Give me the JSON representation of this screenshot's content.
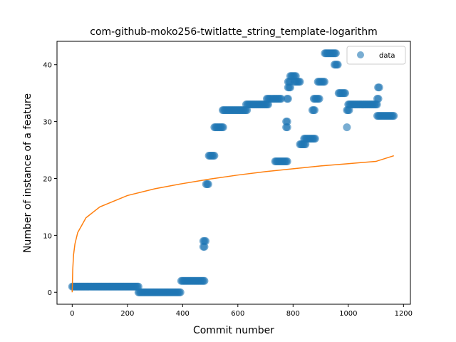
{
  "chart_data": {
    "type": "scatter",
    "title": "com-github-moko256-twitlatte_string_template-logarithm",
    "xlabel": "Commit number",
    "ylabel": "Number of instance of a feature",
    "xlim": [
      -55,
      1225
    ],
    "ylim": [
      -2.1,
      44.1
    ],
    "xticks": [
      0,
      200,
      400,
      600,
      800,
      1000,
      1200
    ],
    "yticks": [
      0,
      10,
      20,
      30,
      40
    ],
    "grid": false,
    "legend": {
      "position": "top-right",
      "entries": [
        "data"
      ]
    },
    "colors": {
      "scatter": "#1f77b4",
      "fit": "#ff7f0e"
    },
    "series": [
      {
        "name": "data",
        "kind": "scatter",
        "segments": [
          {
            "x_start": 0,
            "x_end": 240,
            "y": 1
          },
          {
            "x_start": 240,
            "x_end": 395,
            "y": 0
          },
          {
            "x_start": 395,
            "x_end": 480,
            "y": 2
          },
          {
            "x_start": 475,
            "x_end": 485,
            "y": 9
          },
          {
            "x_start": 475,
            "x_end": 480,
            "y": 8
          },
          {
            "x_start": 485,
            "x_end": 495,
            "y": 19
          },
          {
            "x_start": 495,
            "x_end": 515,
            "y": 24
          },
          {
            "x_start": 515,
            "x_end": 550,
            "y": 29
          },
          {
            "x_start": 545,
            "x_end": 635,
            "y": 32
          },
          {
            "x_start": 630,
            "x_end": 710,
            "y": 33
          },
          {
            "x_start": 705,
            "x_end": 760,
            "y": 34
          },
          {
            "x_start": 735,
            "x_end": 780,
            "y": 23
          },
          {
            "x_start": 775,
            "x_end": 780,
            "y": 29
          },
          {
            "x_start": 775,
            "x_end": 780,
            "y": 30
          },
          {
            "x_start": 778,
            "x_end": 782,
            "y": 34
          },
          {
            "x_start": 782,
            "x_end": 790,
            "y": 36
          },
          {
            "x_start": 782,
            "x_end": 792,
            "y": 37
          },
          {
            "x_start": 790,
            "x_end": 812,
            "y": 38
          },
          {
            "x_start": 805,
            "x_end": 825,
            "y": 37
          },
          {
            "x_start": 825,
            "x_end": 845,
            "y": 26
          },
          {
            "x_start": 840,
            "x_end": 880,
            "y": 27
          },
          {
            "x_start": 870,
            "x_end": 880,
            "y": 32
          },
          {
            "x_start": 875,
            "x_end": 895,
            "y": 34
          },
          {
            "x_start": 890,
            "x_end": 915,
            "y": 37
          },
          {
            "x_start": 915,
            "x_end": 955,
            "y": 42
          },
          {
            "x_start": 950,
            "x_end": 965,
            "y": 40
          },
          {
            "x_start": 965,
            "x_end": 990,
            "y": 35
          },
          {
            "x_start": 995,
            "x_end": 997,
            "y": 29
          },
          {
            "x_start": 995,
            "x_end": 1005,
            "y": 32
          },
          {
            "x_start": 1000,
            "x_end": 1105,
            "y": 33
          },
          {
            "x_start": 1105,
            "x_end": 1110,
            "y": 34
          },
          {
            "x_start": 1108,
            "x_end": 1112,
            "y": 36
          },
          {
            "x_start": 1105,
            "x_end": 1165,
            "y": 31
          }
        ]
      },
      {
        "name": "",
        "kind": "line",
        "fit": "logarithmic",
        "points": [
          [
            0,
            0
          ],
          [
            2,
            4.0
          ],
          [
            5,
            6.6
          ],
          [
            10,
            8.5
          ],
          [
            20,
            10.5
          ],
          [
            50,
            13.1
          ],
          [
            100,
            15.0
          ],
          [
            200,
            17.0
          ],
          [
            300,
            18.2
          ],
          [
            400,
            19.1
          ],
          [
            500,
            19.9
          ],
          [
            600,
            20.6
          ],
          [
            700,
            21.2
          ],
          [
            800,
            21.7
          ],
          [
            900,
            22.2
          ],
          [
            1000,
            22.6
          ],
          [
            1100,
            23.0
          ],
          [
            1165,
            24.0
          ]
        ]
      }
    ]
  }
}
